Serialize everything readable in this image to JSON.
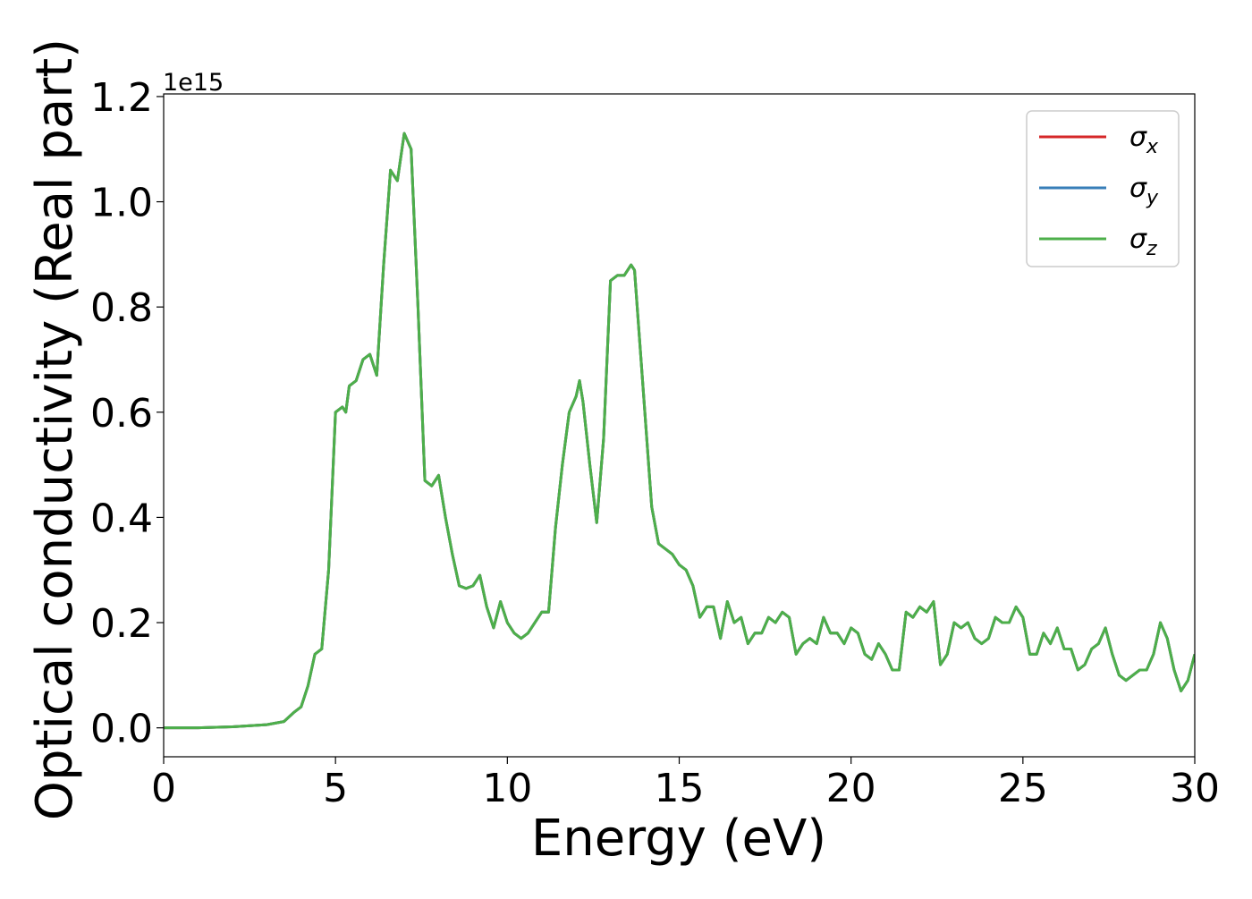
{
  "chart_data": {
    "type": "line",
    "xlabel": "Energy (eV)",
    "ylabel": "Optical conductivity (Real part)",
    "y_offset_label": "1e15",
    "xlim": [
      0,
      30
    ],
    "ylim": [
      -0.055,
      1.205
    ],
    "xticks": [
      0,
      5,
      10,
      15,
      20,
      25,
      30
    ],
    "xtick_labels": [
      "0",
      "5",
      "10",
      "15",
      "20",
      "25",
      "30"
    ],
    "yticks": [
      0.0,
      0.2,
      0.4,
      0.6,
      0.8,
      1.0,
      1.2
    ],
    "ytick_labels": [
      "0.0",
      "0.2",
      "0.4",
      "0.6",
      "0.8",
      "1.0",
      "1.2"
    ],
    "grid": false,
    "legend_position": "top-right",
    "series": [
      {
        "name": "σx",
        "symbol": "σ",
        "subscript": "x",
        "color": "#d62728",
        "ref": "shared"
      },
      {
        "name": "σy",
        "symbol": "σ",
        "subscript": "y",
        "color": "#377eb8",
        "ref": "shared"
      },
      {
        "name": "σz",
        "symbol": "σ",
        "subscript": "z",
        "color": "#4daf4a",
        "ref": "shared"
      }
    ],
    "shared_curve": {
      "x": [
        0,
        1,
        2,
        3,
        3.5,
        3.8,
        4.0,
        4.2,
        4.4,
        4.6,
        4.8,
        5.0,
        5.2,
        5.3,
        5.4,
        5.6,
        5.8,
        6.0,
        6.2,
        6.4,
        6.6,
        6.8,
        7.0,
        7.2,
        7.4,
        7.6,
        7.8,
        8.0,
        8.2,
        8.4,
        8.6,
        8.8,
        9.0,
        9.2,
        9.4,
        9.6,
        9.8,
        10.0,
        10.2,
        10.4,
        10.6,
        10.8,
        11.0,
        11.2,
        11.4,
        11.6,
        11.8,
        12.0,
        12.1,
        12.2,
        12.4,
        12.6,
        12.8,
        13.0,
        13.2,
        13.4,
        13.6,
        13.7,
        13.8,
        14.0,
        14.2,
        14.4,
        14.6,
        14.8,
        15.0,
        15.2,
        15.4,
        15.6,
        15.8,
        16.0,
        16.2,
        16.4,
        16.6,
        16.8,
        17.0,
        17.2,
        17.4,
        17.6,
        17.8,
        18.0,
        18.2,
        18.4,
        18.6,
        18.8,
        19.0,
        19.2,
        19.4,
        19.6,
        19.8,
        20.0,
        20.2,
        20.4,
        20.6,
        20.8,
        21.0,
        21.2,
        21.4,
        21.6,
        21.8,
        22.0,
        22.2,
        22.4,
        22.6,
        22.8,
        23.0,
        23.2,
        23.4,
        23.6,
        23.8,
        24.0,
        24.2,
        24.4,
        24.6,
        24.8,
        25.0,
        25.2,
        25.4,
        25.6,
        25.8,
        26.0,
        26.2,
        26.4,
        26.6,
        26.8,
        27.0,
        27.2,
        27.4,
        27.6,
        27.8,
        28.0,
        28.2,
        28.4,
        28.6,
        28.8,
        29.0,
        29.2,
        29.4,
        29.6,
        29.8,
        30.0
      ],
      "y": [
        0.0,
        0.0,
        0.002,
        0.006,
        0.012,
        0.03,
        0.04,
        0.08,
        0.14,
        0.15,
        0.3,
        0.6,
        0.61,
        0.6,
        0.65,
        0.66,
        0.7,
        0.71,
        0.67,
        0.88,
        1.06,
        1.04,
        1.13,
        1.1,
        0.8,
        0.47,
        0.46,
        0.48,
        0.4,
        0.33,
        0.27,
        0.265,
        0.27,
        0.29,
        0.23,
        0.19,
        0.24,
        0.2,
        0.18,
        0.17,
        0.18,
        0.2,
        0.22,
        0.22,
        0.38,
        0.5,
        0.6,
        0.63,
        0.66,
        0.62,
        0.5,
        0.39,
        0.55,
        0.85,
        0.86,
        0.86,
        0.88,
        0.87,
        0.78,
        0.6,
        0.42,
        0.35,
        0.34,
        0.33,
        0.31,
        0.3,
        0.27,
        0.21,
        0.23,
        0.23,
        0.17,
        0.24,
        0.2,
        0.21,
        0.16,
        0.18,
        0.18,
        0.21,
        0.2,
        0.22,
        0.21,
        0.14,
        0.16,
        0.17,
        0.16,
        0.21,
        0.18,
        0.18,
        0.16,
        0.19,
        0.18,
        0.14,
        0.13,
        0.16,
        0.14,
        0.11,
        0.11,
        0.22,
        0.21,
        0.23,
        0.22,
        0.24,
        0.12,
        0.14,
        0.2,
        0.19,
        0.2,
        0.17,
        0.16,
        0.17,
        0.21,
        0.2,
        0.2,
        0.23,
        0.21,
        0.14,
        0.14,
        0.18,
        0.16,
        0.19,
        0.15,
        0.15,
        0.11,
        0.12,
        0.15,
        0.16,
        0.19,
        0.14,
        0.1,
        0.09,
        0.1,
        0.11,
        0.11,
        0.14,
        0.2,
        0.17,
        0.11,
        0.07,
        0.09,
        0.14
      ]
    }
  }
}
